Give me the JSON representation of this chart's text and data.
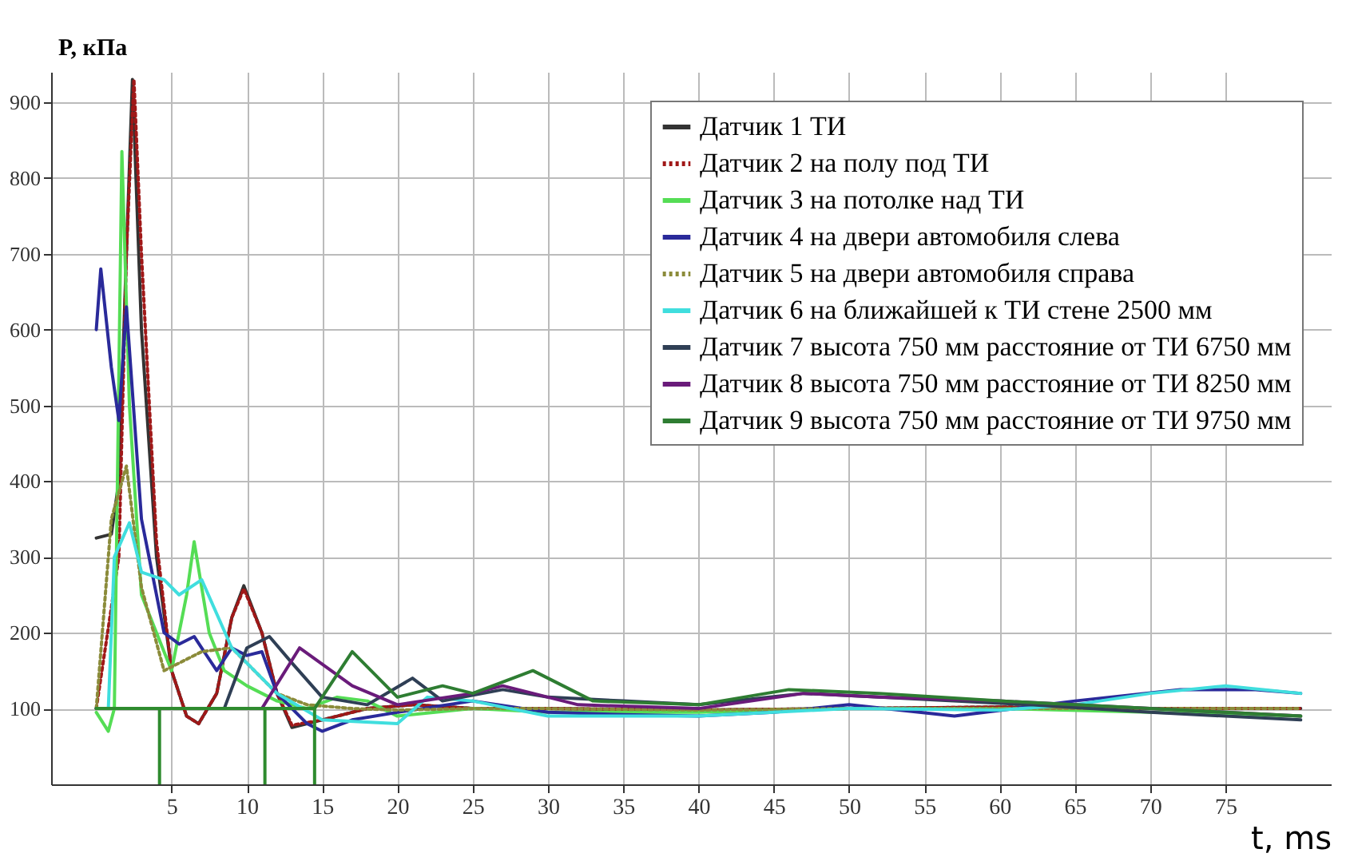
{
  "chart_data": {
    "type": "line",
    "xlabel": "t, ms",
    "ylabel": "P, кПа",
    "xlim": [
      -3,
      82
    ],
    "ylim": [
      0,
      940
    ],
    "xticks": [
      5,
      10,
      15,
      20,
      25,
      30,
      35,
      40,
      45,
      50,
      55,
      60,
      65,
      70,
      75
    ],
    "yticks": [
      100,
      200,
      300,
      400,
      500,
      600,
      700,
      800,
      900
    ],
    "grid": true,
    "legend": "top right",
    "line_style": "solid",
    "marker": "none",
    "series": [
      {
        "name": "Датчик 1 ТИ",
        "color": "#333333",
        "x": [
          0,
          1,
          1.5,
          2,
          2.4,
          3,
          4,
          5,
          6,
          6.8,
          8,
          9,
          9.8,
          11,
          12,
          13,
          15,
          18,
          21,
          25,
          30,
          40,
          50,
          60,
          70,
          80
        ],
        "values": [
          325,
          330,
          400,
          700,
          930,
          600,
          300,
          150,
          90,
          80,
          120,
          220,
          262,
          200,
          120,
          75,
          85,
          100,
          105,
          100,
          100,
          98,
          100,
          102,
          100,
          100
        ]
      },
      {
        "name": "Датчик 2 на полу под ТИ",
        "color": "#a01818",
        "line_style": "dotted",
        "x": [
          0,
          1.5,
          2,
          2.5,
          3,
          4,
          5,
          6,
          6.8,
          8,
          9,
          9.8,
          11,
          12,
          13,
          15,
          18,
          21,
          25,
          30,
          40,
          50,
          60,
          70,
          80
        ],
        "values": [
          100,
          300,
          700,
          930,
          700,
          320,
          150,
          90,
          80,
          120,
          220,
          258,
          200,
          120,
          78,
          85,
          100,
          105,
          100,
          100,
          98,
          100,
          102,
          100,
          100
        ]
      },
      {
        "name": "Датчик 3 на потолке над ТИ",
        "color": "#55dd55",
        "x": [
          0,
          0.8,
          1.2,
          1.7,
          2.2,
          3,
          4,
          5,
          6,
          6.5,
          7.5,
          8.5,
          10,
          12,
          14,
          16,
          18,
          20,
          25,
          30,
          40,
          50,
          60,
          70,
          80
        ],
        "values": [
          95,
          70,
          100,
          835,
          500,
          250,
          200,
          150,
          250,
          320,
          200,
          150,
          130,
          110,
          100,
          115,
          110,
          90,
          100,
          95,
          95,
          100,
          100,
          95,
          90
        ]
      },
      {
        "name": "Датчик 4 на двери автомобиля слева",
        "color": "#2a2a9a",
        "x": [
          0,
          0.3,
          1,
          1.5,
          2,
          3,
          4.5,
          5.5,
          6.5,
          8,
          9,
          10,
          11,
          12,
          14,
          15,
          17,
          20,
          25,
          30,
          35,
          40,
          45,
          50,
          57,
          65,
          72,
          77,
          80
        ],
        "values": [
          600,
          680,
          550,
          480,
          630,
          350,
          200,
          185,
          195,
          150,
          180,
          170,
          175,
          120,
          80,
          70,
          85,
          95,
          110,
          95,
          92,
          90,
          95,
          105,
          90,
          110,
          125,
          125,
          120
        ]
      },
      {
        "name": "Датчик 5 на двери автомобиля справа",
        "color": "#8b8b3a",
        "line_style": "dotted",
        "x": [
          0,
          1,
          2,
          3,
          4.5,
          5.5,
          7,
          9,
          10,
          12,
          14,
          17,
          20,
          25,
          30,
          40,
          50,
          60,
          70,
          80
        ],
        "values": [
          100,
          350,
          420,
          260,
          150,
          160,
          175,
          180,
          160,
          120,
          105,
          100,
          98,
          100,
          100,
          98,
          100,
          100,
          100,
          100
        ]
      },
      {
        "name": "Датчик 6 на ближайшей к ТИ стене 2500 мм",
        "color": "#40dede",
        "x": [
          0,
          0.8,
          1.2,
          2.2,
          3,
          4.5,
          5.5,
          7,
          9,
          12,
          15,
          20,
          22,
          25,
          30,
          40,
          50,
          60,
          65,
          70,
          75,
          80
        ],
        "values": [
          100,
          100,
          300,
          345,
          280,
          270,
          250,
          270,
          180,
          120,
          85,
          80,
          115,
          110,
          90,
          90,
          100,
          98,
          105,
          120,
          130,
          120
        ]
      },
      {
        "name": "Датчик 7 высота 750 мм расстояние от ТИ 6750 мм",
        "color": "#2f3f55",
        "x": [
          0,
          8.5,
          10,
          11.5,
          13,
          15,
          18,
          21,
          23,
          27,
          30,
          35,
          40,
          47,
          52,
          62,
          70,
          80
        ],
        "values": [
          100,
          100,
          180,
          195,
          160,
          115,
          105,
          140,
          110,
          125,
          115,
          110,
          105,
          120,
          115,
          105,
          95,
          85
        ]
      },
      {
        "name": "Датчик 8 высота 750 мм расстояние от ТИ 8250 мм",
        "color": "#6a1b7a",
        "x": [
          0,
          11,
          13.5,
          17,
          20,
          25,
          27,
          32,
          40,
          47,
          52,
          60,
          70,
          80
        ],
        "values": [
          100,
          100,
          180,
          130,
          105,
          120,
          130,
          105,
          100,
          120,
          115,
          110,
          100,
          90
        ]
      },
      {
        "name": "Датчик 9 высота 750 мм расстояние от ТИ 9750 мм",
        "color": "#2e7d32",
        "x": [
          0,
          14.5,
          17,
          20,
          23,
          25,
          29,
          33,
          40,
          46,
          52,
          60,
          70,
          80
        ],
        "values": [
          100,
          100,
          175,
          115,
          130,
          120,
          150,
          110,
          105,
          125,
          120,
          110,
          100,
          90
        ]
      },
      {
        "color": "#2e8b2e",
        "x": [
          0,
          4.2,
          4.2,
          4.2,
          11.2,
          11.2,
          11.2,
          14.5,
          14.5
        ],
        "values": [
          100,
          100,
          0,
          100,
          100,
          0,
          100,
          100,
          0
        ]
      }
    ]
  }
}
